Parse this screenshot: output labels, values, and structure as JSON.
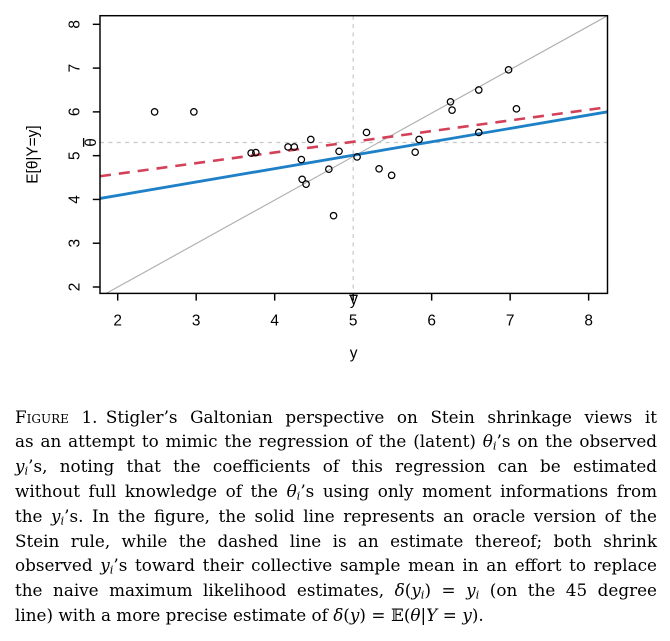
{
  "figure": {
    "caption": {
      "label": "Figure 1.",
      "plain_text": "Figure 1. Stigler’s Galtonian perspective on Stein shrinkage views it as an attempt to mimic the regression of the (latent) θi’s on the observed yi’s, noting that the coefficients of this regression can be estimated without full knowledge of the θi’s using only moment informations from the yi’s. In the figure, the solid line represents an oracle version of the Stein rule, while the dashed line is an estimate thereof; both shrink observed yi’s toward their collective sample mean in an effort to replace the naive maximum likelihood estimates, δ(yi) = yi (on the 45 degree line) with a more precise estimate of δ(y) = 𝔼(θ|Y = y).",
      "lines": [
        [
          {
            "t": "Figure 1.",
            "s": "sc"
          },
          {
            "t": " Stigler’s Galtonian perspective on Stein shrinkage views it",
            "s": "rm"
          }
        ],
        [
          {
            "t": "as an attempt to mimic the regression of the (latent) ",
            "s": "rm"
          },
          {
            "t": "θ",
            "s": "it"
          },
          {
            "t": "i",
            "s": "sub"
          },
          {
            "t": "’s on the observed",
            "s": "rm"
          }
        ],
        [
          {
            "t": "y",
            "s": "it"
          },
          {
            "t": "i",
            "s": "sub"
          },
          {
            "t": "’s, noting that the coefficients of this regression can be estimated",
            "s": "rm"
          }
        ],
        [
          {
            "t": "without full knowledge of the ",
            "s": "rm"
          },
          {
            "t": "θ",
            "s": "it"
          },
          {
            "t": "i",
            "s": "sub"
          },
          {
            "t": "’s using only moment informations from",
            "s": "rm"
          }
        ],
        [
          {
            "t": "the ",
            "s": "rm"
          },
          {
            "t": "y",
            "s": "it"
          },
          {
            "t": "i",
            "s": "sub"
          },
          {
            "t": "’s. In the figure, the solid line represents an oracle version of the",
            "s": "rm"
          }
        ],
        [
          {
            "t": "Stein rule, while the dashed line is an estimate thereof; both shrink",
            "s": "rm"
          }
        ],
        [
          {
            "t": "observed ",
            "s": "rm"
          },
          {
            "t": "y",
            "s": "it"
          },
          {
            "t": "i",
            "s": "sub"
          },
          {
            "t": "’s toward their collective sample mean in an effort to replace",
            "s": "rm"
          }
        ],
        [
          {
            "t": "the naive maximum likelihood estimates, ",
            "s": "rm"
          },
          {
            "t": "δ",
            "s": "it"
          },
          {
            "t": "(",
            "s": "rm"
          },
          {
            "t": "y",
            "s": "it"
          },
          {
            "t": "i",
            "s": "sub"
          },
          {
            "t": ") = ",
            "s": "rm"
          },
          {
            "t": "y",
            "s": "it"
          },
          {
            "t": "i",
            "s": "sub"
          },
          {
            "t": " (on the 45 degree",
            "s": "rm"
          }
        ],
        [
          {
            "t": "line) with a more precise estimate of ",
            "s": "rm"
          },
          {
            "t": "δ",
            "s": "it"
          },
          {
            "t": "(",
            "s": "rm"
          },
          {
            "t": "y",
            "s": "it"
          },
          {
            "t": ") = ",
            "s": "rm"
          },
          {
            "t": "𝔼",
            "s": "rm"
          },
          {
            "t": "(",
            "s": "rm"
          },
          {
            "t": "θ",
            "s": "it"
          },
          {
            "t": "|",
            "s": "rm"
          },
          {
            "t": "Y",
            "s": "it"
          },
          {
            "t": " = ",
            "s": "rm"
          },
          {
            "t": "y",
            "s": "it"
          },
          {
            "t": ").",
            "s": "rm"
          }
        ]
      ]
    }
  },
  "chart_data": {
    "type": "scatter",
    "title": "",
    "xlabel": "y",
    "ylabel": "E[θ|Y=y]",
    "x_ticks": [
      2,
      3,
      4,
      5,
      6,
      7,
      8
    ],
    "y_ticks": [
      2,
      3,
      4,
      5,
      6,
      7,
      8
    ],
    "xlim": [
      1.77,
      8.24
    ],
    "ylim": [
      1.85,
      8.2
    ],
    "grid": false,
    "legend": "none",
    "points": [
      [
        2.47,
        6.0
      ],
      [
        2.97,
        6.0
      ],
      [
        3.7,
        5.06
      ],
      [
        3.76,
        5.07
      ],
      [
        4.17,
        5.2
      ],
      [
        4.25,
        5.2
      ],
      [
        4.34,
        4.91
      ],
      [
        4.35,
        4.46
      ],
      [
        4.4,
        4.35
      ],
      [
        4.46,
        5.37
      ],
      [
        4.69,
        4.69
      ],
      [
        4.75,
        3.63
      ],
      [
        4.82,
        5.1
      ],
      [
        5.05,
        4.97
      ],
      [
        5.17,
        5.53
      ],
      [
        5.33,
        4.7
      ],
      [
        5.49,
        4.55
      ],
      [
        5.79,
        5.08
      ],
      [
        5.84,
        5.37
      ],
      [
        6.24,
        6.23
      ],
      [
        6.26,
        6.04
      ],
      [
        6.6,
        6.5
      ],
      [
        6.6,
        5.53
      ],
      [
        6.98,
        6.96
      ],
      [
        7.08,
        6.07
      ]
    ],
    "lines": [
      {
        "name": "identity-45-degree-line",
        "slope": 1,
        "intercept": 0,
        "style": "solid",
        "color": "#b2b2b2",
        "width": 1.2
      },
      {
        "name": "estimated-stein-rule-line",
        "slope": 0.244,
        "intercept": 4.097,
        "style": "dashed",
        "color": "#d24158",
        "width": 2.6,
        "dash": "11 8"
      },
      {
        "name": "oracle-stein-rule-line",
        "slope": 0.306,
        "intercept": 3.48,
        "style": "solid",
        "color": "#1e80c7",
        "width": 2.8
      }
    ],
    "reference_lines": {
      "horizontal": {
        "value": 5.3,
        "label": "θ̄",
        "char": "θ",
        "color": "#c8c8c8"
      },
      "vertical": {
        "value": 5.0,
        "label": "ȳ",
        "char": "y",
        "color": "#c8c8c8"
      }
    },
    "point_style": {
      "marker": "open-circle",
      "color": "#000000",
      "radius": 3.2
    },
    "axis_color": "#000000"
  }
}
